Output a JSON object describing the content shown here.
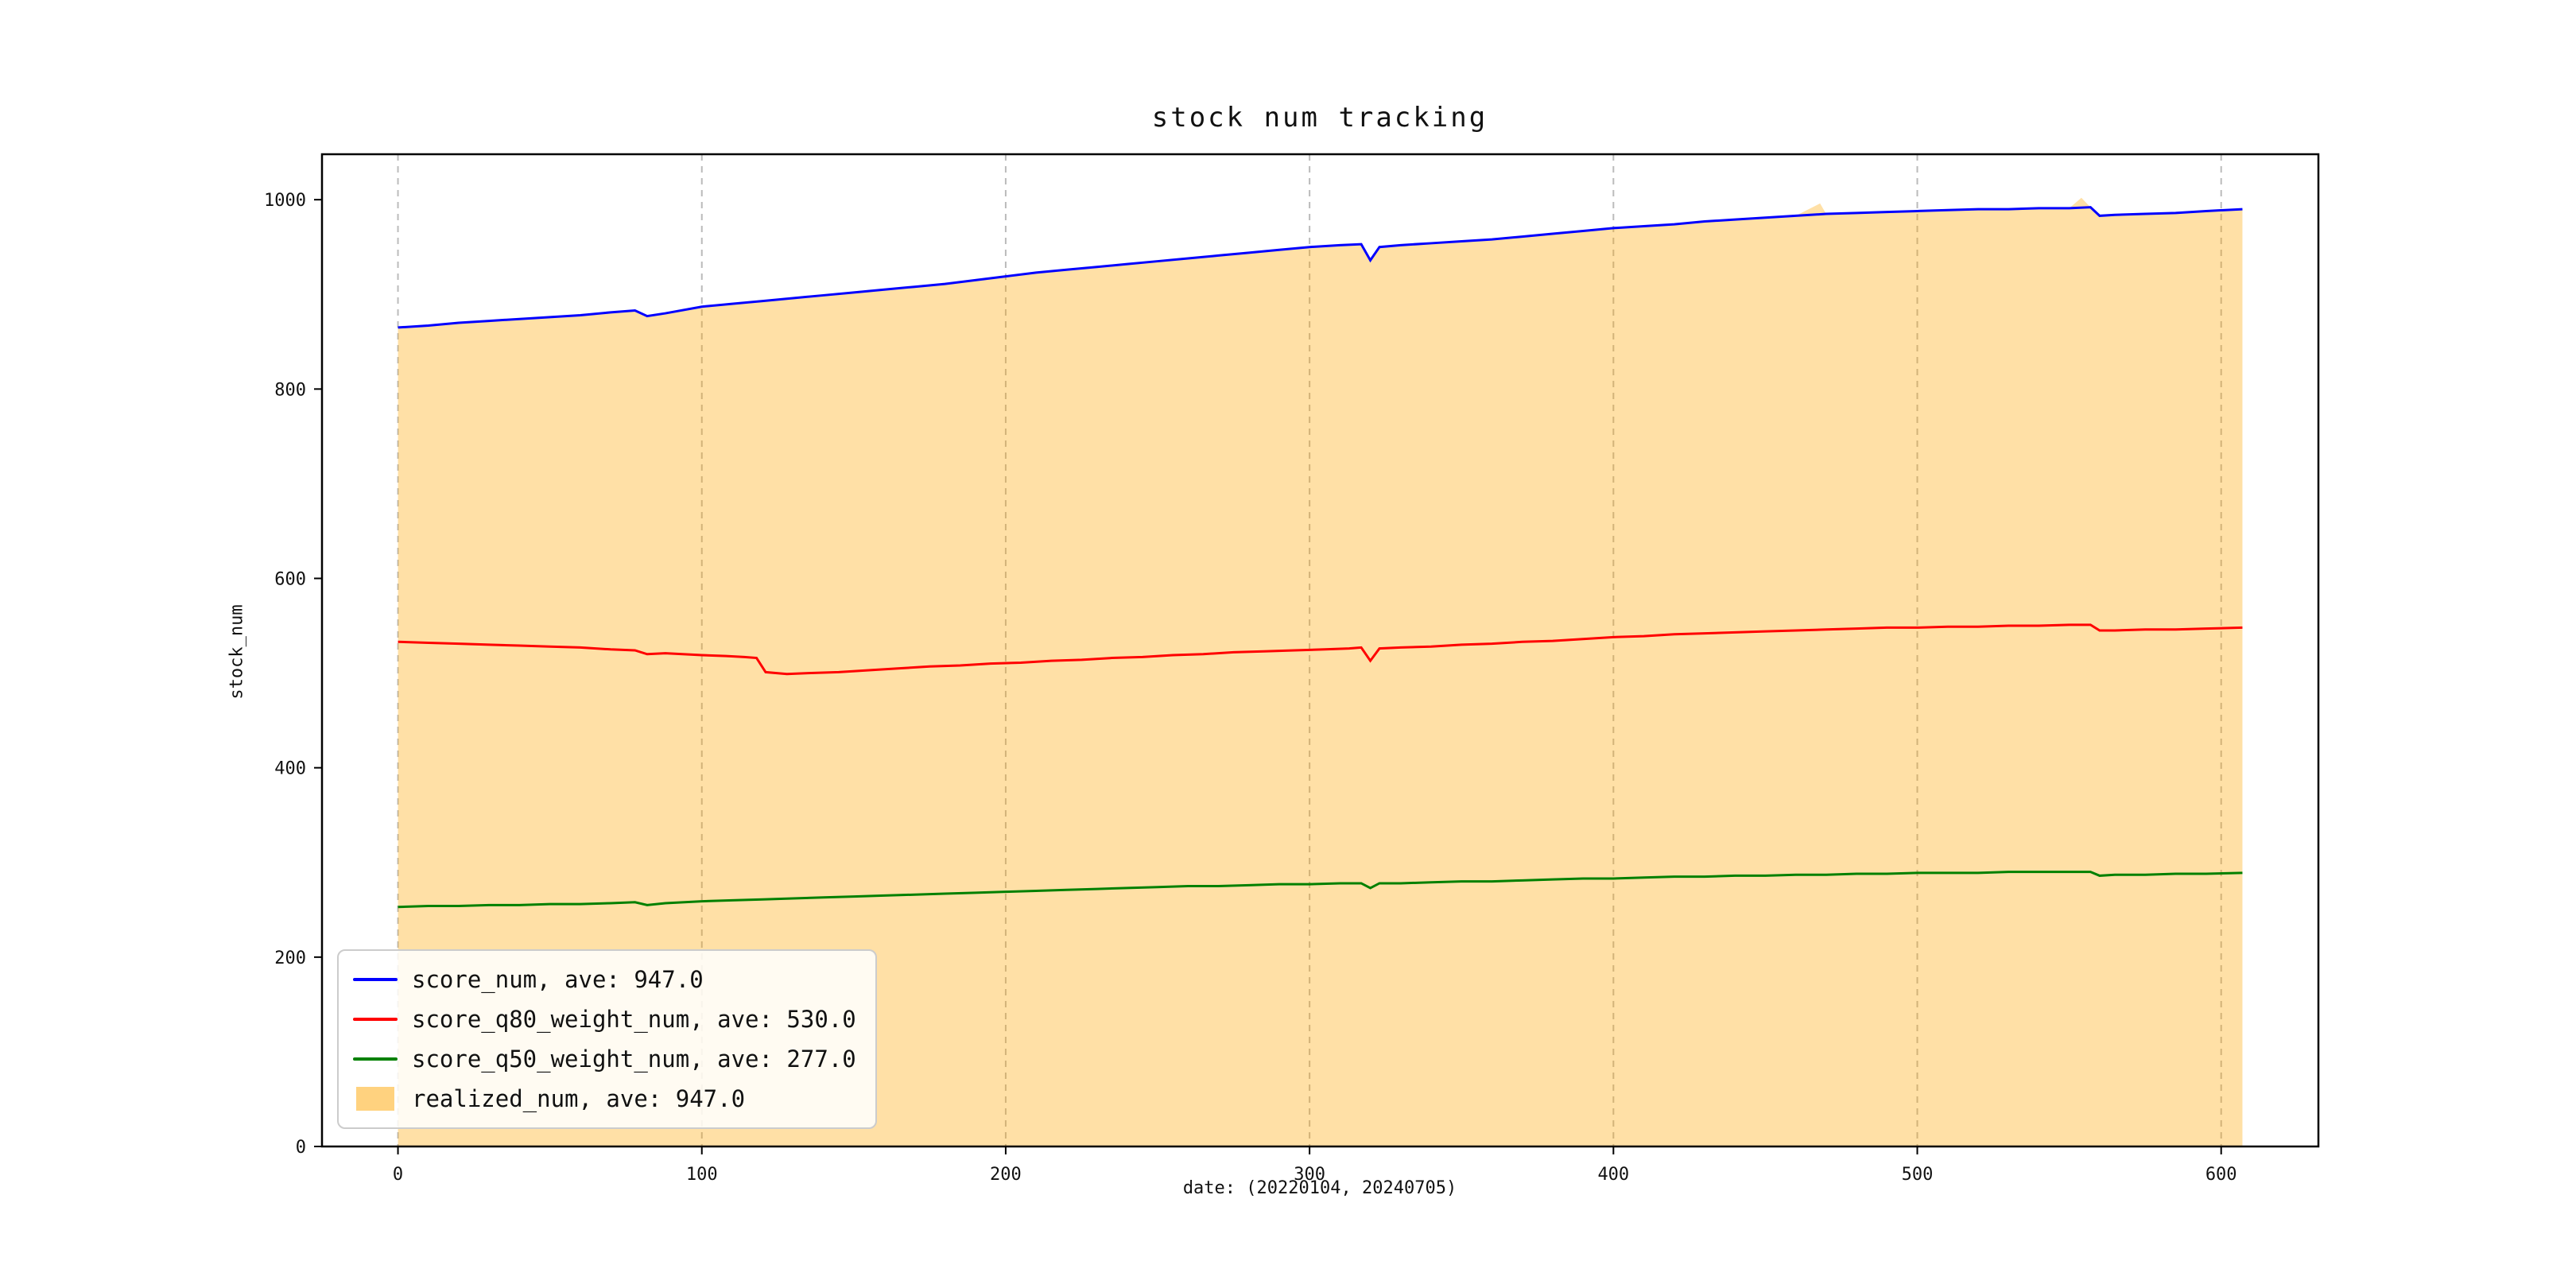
{
  "figure": {
    "background": "#ffffff"
  },
  "chart_data": {
    "type": "line",
    "title": "stock num tracking",
    "xlabel": "date: (20220104, 20240705)",
    "ylabel": "stock_num",
    "xlim": [
      -25,
      632
    ],
    "ylim": [
      0,
      1048
    ],
    "x_ticks": [
      0,
      100,
      200,
      300,
      400,
      500,
      600
    ],
    "y_ticks": [
      0,
      200,
      400,
      600,
      800,
      1000
    ],
    "grid": "vertical-dashed",
    "legend_position": "lower-left",
    "series": [
      {
        "name": "score_num, ave: 947.0",
        "type": "line",
        "color": "#0000ff",
        "points": [
          [
            0,
            865
          ],
          [
            10,
            867
          ],
          [
            20,
            870
          ],
          [
            30,
            872
          ],
          [
            40,
            874
          ],
          [
            50,
            876
          ],
          [
            60,
            878
          ],
          [
            70,
            881
          ],
          [
            78,
            883
          ],
          [
            82,
            877
          ],
          [
            88,
            880
          ],
          [
            100,
            887
          ],
          [
            110,
            890
          ],
          [
            120,
            893
          ],
          [
            130,
            896
          ],
          [
            140,
            899
          ],
          [
            150,
            902
          ],
          [
            160,
            905
          ],
          [
            170,
            908
          ],
          [
            180,
            911
          ],
          [
            190,
            915
          ],
          [
            200,
            919
          ],
          [
            210,
            923
          ],
          [
            220,
            926
          ],
          [
            230,
            929
          ],
          [
            240,
            932
          ],
          [
            250,
            935
          ],
          [
            260,
            938
          ],
          [
            270,
            941
          ],
          [
            280,
            944
          ],
          [
            290,
            947
          ],
          [
            300,
            950
          ],
          [
            310,
            952
          ],
          [
            317,
            953
          ],
          [
            320,
            936
          ],
          [
            323,
            950
          ],
          [
            330,
            952
          ],
          [
            340,
            954
          ],
          [
            350,
            956
          ],
          [
            360,
            958
          ],
          [
            370,
            961
          ],
          [
            380,
            964
          ],
          [
            390,
            967
          ],
          [
            400,
            970
          ],
          [
            410,
            972
          ],
          [
            420,
            974
          ],
          [
            430,
            977
          ],
          [
            440,
            979
          ],
          [
            450,
            981
          ],
          [
            460,
            983
          ],
          [
            470,
            985
          ],
          [
            480,
            986
          ],
          [
            490,
            987
          ],
          [
            500,
            988
          ],
          [
            510,
            989
          ],
          [
            520,
            990
          ],
          [
            530,
            990
          ],
          [
            540,
            991
          ],
          [
            550,
            991
          ],
          [
            557,
            992
          ],
          [
            560,
            983
          ],
          [
            565,
            984
          ],
          [
            575,
            985
          ],
          [
            585,
            986
          ],
          [
            595,
            988
          ],
          [
            607,
            990
          ]
        ]
      },
      {
        "name": "score_q80_weight_num, ave: 530.0",
        "type": "line",
        "color": "#ff0000",
        "points": [
          [
            0,
            533
          ],
          [
            10,
            532
          ],
          [
            20,
            531
          ],
          [
            30,
            530
          ],
          [
            40,
            529
          ],
          [
            50,
            528
          ],
          [
            60,
            527
          ],
          [
            70,
            525
          ],
          [
            78,
            524
          ],
          [
            82,
            520
          ],
          [
            88,
            521
          ],
          [
            100,
            519
          ],
          [
            108,
            518
          ],
          [
            114,
            517
          ],
          [
            118,
            516
          ],
          [
            121,
            501
          ],
          [
            128,
            499
          ],
          [
            135,
            500
          ],
          [
            145,
            501
          ],
          [
            155,
            503
          ],
          [
            165,
            505
          ],
          [
            175,
            507
          ],
          [
            185,
            508
          ],
          [
            195,
            510
          ],
          [
            205,
            511
          ],
          [
            215,
            513
          ],
          [
            225,
            514
          ],
          [
            235,
            516
          ],
          [
            245,
            517
          ],
          [
            255,
            519
          ],
          [
            265,
            520
          ],
          [
            275,
            522
          ],
          [
            285,
            523
          ],
          [
            295,
            524
          ],
          [
            305,
            525
          ],
          [
            313,
            526
          ],
          [
            317,
            527
          ],
          [
            320,
            513
          ],
          [
            323,
            526
          ],
          [
            330,
            527
          ],
          [
            340,
            528
          ],
          [
            350,
            530
          ],
          [
            360,
            531
          ],
          [
            370,
            533
          ],
          [
            380,
            534
          ],
          [
            390,
            536
          ],
          [
            400,
            538
          ],
          [
            410,
            539
          ],
          [
            420,
            541
          ],
          [
            430,
            542
          ],
          [
            440,
            543
          ],
          [
            450,
            544
          ],
          [
            460,
            545
          ],
          [
            470,
            546
          ],
          [
            480,
            547
          ],
          [
            490,
            548
          ],
          [
            500,
            548
          ],
          [
            510,
            549
          ],
          [
            520,
            549
          ],
          [
            530,
            550
          ],
          [
            540,
            550
          ],
          [
            550,
            551
          ],
          [
            557,
            551
          ],
          [
            560,
            545
          ],
          [
            565,
            545
          ],
          [
            575,
            546
          ],
          [
            585,
            546
          ],
          [
            595,
            547
          ],
          [
            607,
            548
          ]
        ]
      },
      {
        "name": "score_q50_weight_num, ave: 277.0",
        "type": "line",
        "color": "#008000",
        "points": [
          [
            0,
            253
          ],
          [
            10,
            254
          ],
          [
            20,
            254
          ],
          [
            30,
            255
          ],
          [
            40,
            255
          ],
          [
            50,
            256
          ],
          [
            60,
            256
          ],
          [
            70,
            257
          ],
          [
            78,
            258
          ],
          [
            82,
            255
          ],
          [
            88,
            257
          ],
          [
            100,
            259
          ],
          [
            110,
            260
          ],
          [
            120,
            261
          ],
          [
            130,
            262
          ],
          [
            140,
            263
          ],
          [
            150,
            264
          ],
          [
            160,
            265
          ],
          [
            170,
            266
          ],
          [
            180,
            267
          ],
          [
            190,
            268
          ],
          [
            200,
            269
          ],
          [
            210,
            270
          ],
          [
            220,
            271
          ],
          [
            230,
            272
          ],
          [
            240,
            273
          ],
          [
            250,
            274
          ],
          [
            260,
            275
          ],
          [
            270,
            275
          ],
          [
            280,
            276
          ],
          [
            290,
            277
          ],
          [
            300,
            277
          ],
          [
            310,
            278
          ],
          [
            317,
            278
          ],
          [
            320,
            273
          ],
          [
            323,
            278
          ],
          [
            330,
            278
          ],
          [
            340,
            279
          ],
          [
            350,
            280
          ],
          [
            360,
            280
          ],
          [
            370,
            281
          ],
          [
            380,
            282
          ],
          [
            390,
            283
          ],
          [
            400,
            283
          ],
          [
            410,
            284
          ],
          [
            420,
            285
          ],
          [
            430,
            285
          ],
          [
            440,
            286
          ],
          [
            450,
            286
          ],
          [
            460,
            287
          ],
          [
            470,
            287
          ],
          [
            480,
            288
          ],
          [
            490,
            288
          ],
          [
            500,
            289
          ],
          [
            510,
            289
          ],
          [
            520,
            289
          ],
          [
            530,
            290
          ],
          [
            540,
            290
          ],
          [
            550,
            290
          ],
          [
            557,
            290
          ],
          [
            560,
            286
          ],
          [
            565,
            287
          ],
          [
            575,
            287
          ],
          [
            585,
            288
          ],
          [
            595,
            288
          ],
          [
            607,
            289
          ]
        ]
      },
      {
        "name": "realized_num, ave: 947.0",
        "type": "area",
        "color": "#ffa500",
        "opacity": 0.35,
        "points": [
          [
            0,
            865
          ],
          [
            10,
            867
          ],
          [
            20,
            870
          ],
          [
            30,
            872
          ],
          [
            40,
            874
          ],
          [
            50,
            876
          ],
          [
            60,
            878
          ],
          [
            70,
            881
          ],
          [
            78,
            883
          ],
          [
            82,
            877
          ],
          [
            88,
            880
          ],
          [
            100,
            887
          ],
          [
            110,
            890
          ],
          [
            120,
            893
          ],
          [
            130,
            896
          ],
          [
            140,
            899
          ],
          [
            150,
            902
          ],
          [
            160,
            905
          ],
          [
            170,
            908
          ],
          [
            180,
            911
          ],
          [
            190,
            915
          ],
          [
            200,
            919
          ],
          [
            210,
            923
          ],
          [
            220,
            926
          ],
          [
            230,
            929
          ],
          [
            240,
            932
          ],
          [
            250,
            935
          ],
          [
            260,
            938
          ],
          [
            270,
            941
          ],
          [
            280,
            944
          ],
          [
            290,
            947
          ],
          [
            300,
            950
          ],
          [
            310,
            952
          ],
          [
            317,
            953
          ],
          [
            320,
            936
          ],
          [
            323,
            950
          ],
          [
            330,
            952
          ],
          [
            340,
            954
          ],
          [
            350,
            956
          ],
          [
            360,
            958
          ],
          [
            370,
            961
          ],
          [
            380,
            964
          ],
          [
            390,
            967
          ],
          [
            400,
            970
          ],
          [
            410,
            972
          ],
          [
            420,
            974
          ],
          [
            430,
            977
          ],
          [
            440,
            979
          ],
          [
            450,
            981
          ],
          [
            460,
            983
          ],
          [
            468,
            996
          ],
          [
            470,
            985
          ],
          [
            480,
            986
          ],
          [
            490,
            987
          ],
          [
            500,
            988
          ],
          [
            510,
            989
          ],
          [
            520,
            990
          ],
          [
            530,
            990
          ],
          [
            540,
            991
          ],
          [
            550,
            991
          ],
          [
            554,
            1002
          ],
          [
            557,
            992
          ],
          [
            560,
            983
          ],
          [
            565,
            984
          ],
          [
            575,
            985
          ],
          [
            585,
            986
          ],
          [
            595,
            988
          ],
          [
            607,
            990
          ]
        ]
      }
    ]
  }
}
